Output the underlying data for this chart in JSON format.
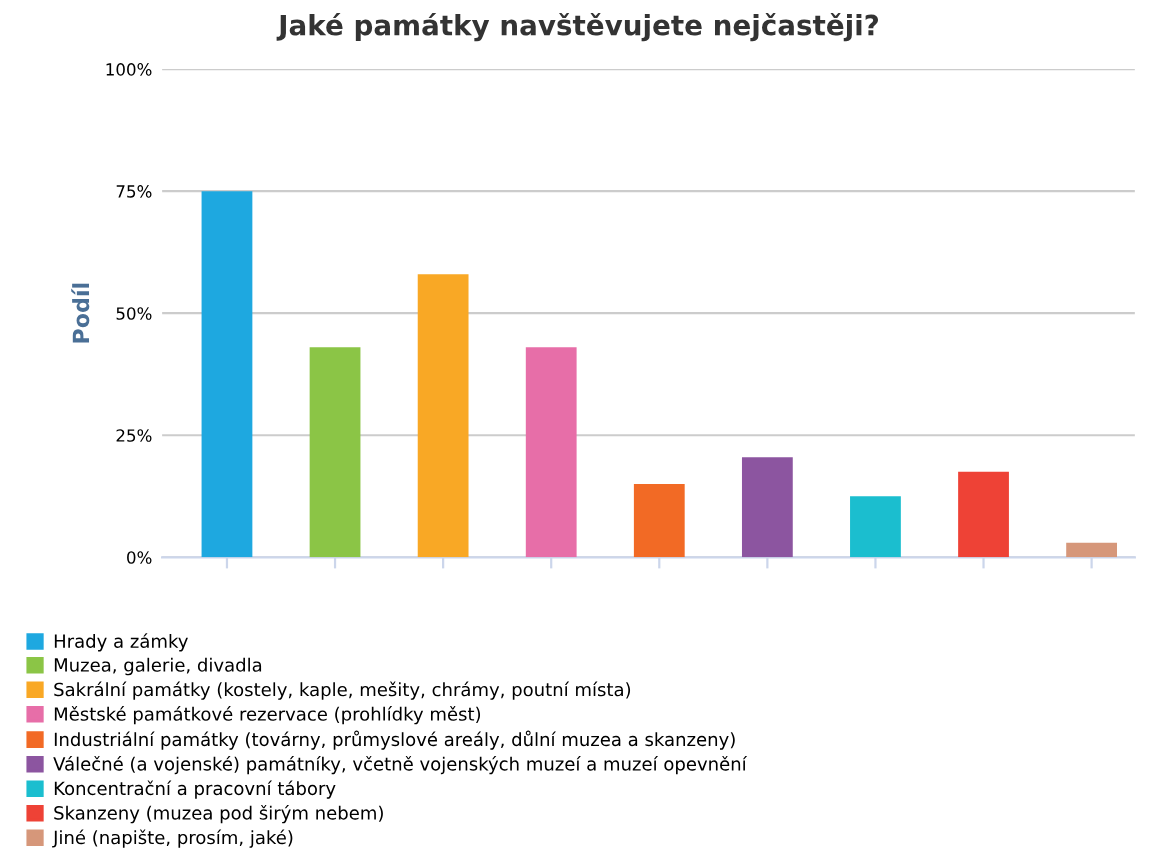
{
  "chart_data": {
    "type": "bar",
    "title": "Jaké památky navštěvujete nejčastěji?",
    "ylabel": "Podíl",
    "categories": [
      null,
      null,
      null,
      null,
      null,
      null,
      null,
      null,
      null
    ],
    "series": [
      {
        "name": "Hrady a zámky",
        "color": "#1ea8e0",
        "values": [
          75,
          null,
          null,
          null,
          null,
          null,
          null,
          null,
          null
        ]
      },
      {
        "name": "Muzea, galerie, divadla",
        "color": "#8bc546",
        "values": [
          null,
          43,
          null,
          null,
          null,
          null,
          null,
          null,
          null
        ]
      },
      {
        "name": "Sakrální památky (kostely, kaple, mešity, chrámy, poutní místa)",
        "color": "#f9a825",
        "values": [
          null,
          null,
          58,
          null,
          null,
          null,
          null,
          null,
          null
        ]
      },
      {
        "name": "Městské památkové rezervace (prohlídky měst)",
        "color": "#e76ea8",
        "values": [
          null,
          null,
          null,
          43,
          null,
          null,
          null,
          null,
          null
        ]
      },
      {
        "name": "Industriální památky (továrny, průmyslové areály, důlní muzea a skanzeny)",
        "color": "#f26a25",
        "values": [
          null,
          null,
          null,
          null,
          15,
          null,
          null,
          null,
          null
        ]
      },
      {
        "name": "Válečné (a vojenské) památníky, včetně vojenských muzeí a muzeí opevnění",
        "color": "#8c55a0",
        "values": [
          null,
          null,
          null,
          null,
          null,
          20.5,
          null,
          null,
          null
        ]
      },
      {
        "name": "Koncentrační a pracovní tábory",
        "color": "#1bbecf",
        "values": [
          null,
          null,
          null,
          null,
          null,
          null,
          12.5,
          null,
          null
        ]
      },
      {
        "name": "Skanzeny (muzea pod širým nebem)",
        "color": "#ee4236",
        "values": [
          null,
          null,
          null,
          null,
          null,
          null,
          null,
          17.5,
          null
        ]
      },
      {
        "name": "Jiné (napište, prosím, jaké)",
        "color": "#d6977a",
        "values": [
          null,
          null,
          null,
          null,
          null,
          null,
          null,
          null,
          3
        ]
      }
    ],
    "ylim": [
      0,
      100
    ],
    "yticks": [
      {
        "value": 0,
        "label": "0%"
      },
      {
        "value": 25,
        "label": "25%"
      },
      {
        "value": 50,
        "label": "50%"
      },
      {
        "value": 75,
        "label": "75%"
      },
      {
        "value": 100,
        "label": "100%"
      }
    ],
    "grid": "y",
    "legend": "bottom"
  }
}
